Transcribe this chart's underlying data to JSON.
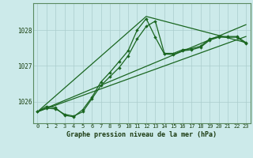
{
  "title": "Graphe pression niveau de la mer (hPa)",
  "bg_color": "#cceaea",
  "grid_color": "#aacccc",
  "line_color": "#1a6620",
  "xlim": [
    -0.5,
    23.5
  ],
  "ylim": [
    1025.4,
    1028.75
  ],
  "yticks": [
    1026,
    1027,
    1028
  ],
  "xticks": [
    0,
    1,
    2,
    3,
    4,
    5,
    6,
    7,
    8,
    9,
    10,
    11,
    12,
    13,
    14,
    15,
    16,
    17,
    18,
    19,
    20,
    21,
    22,
    23
  ],
  "series": [
    {
      "x": [
        0,
        1,
        2,
        3,
        4,
        5,
        6,
        7,
        8,
        9,
        10,
        11,
        12,
        13,
        14,
        15,
        16,
        17,
        18,
        19,
        20,
        21,
        22,
        23
      ],
      "y": [
        1025.72,
        1025.87,
        1025.83,
        1025.62,
        1025.58,
        1025.78,
        1026.12,
        1026.55,
        1026.82,
        1027.12,
        1027.42,
        1028.0,
        1028.32,
        1027.8,
        1027.33,
        1027.32,
        1027.42,
        1027.45,
        1027.52,
        1027.72,
        1027.8,
        1027.8,
        1027.8,
        1027.62
      ],
      "markers": true
    },
    {
      "x": [
        0,
        1,
        2,
        3,
        4,
        5,
        6,
        7,
        8,
        9,
        10,
        11,
        12,
        13,
        14,
        15,
        16,
        17,
        18,
        19,
        20,
        21,
        22,
        23
      ],
      "y": [
        1025.72,
        1025.82,
        1025.8,
        1025.65,
        1025.6,
        1025.72,
        1026.08,
        1026.45,
        1026.7,
        1026.95,
        1027.28,
        1027.75,
        1028.1,
        1028.25,
        1027.35,
        1027.35,
        1027.45,
        1027.48,
        1027.55,
        1027.75,
        1027.82,
        1027.82,
        1027.82,
        1027.65
      ],
      "markers": true
    },
    {
      "x": [
        0,
        23
      ],
      "y": [
        1025.72,
        1027.82
      ],
      "markers": false
    },
    {
      "x": [
        0,
        23
      ],
      "y": [
        1025.72,
        1028.15
      ],
      "markers": false
    },
    {
      "x": [
        0,
        12,
        23
      ],
      "y": [
        1025.72,
        1028.38,
        1027.65
      ],
      "markers": false
    }
  ]
}
